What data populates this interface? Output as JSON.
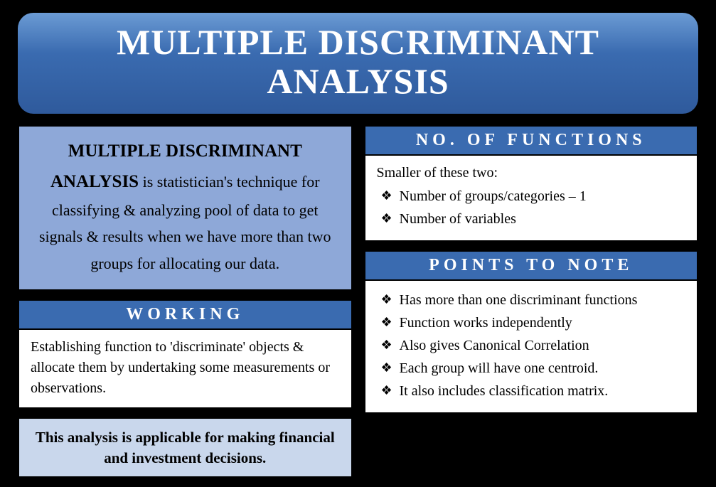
{
  "title": "MULTIPLE DISCRIMINANT ANALYSIS",
  "definition": {
    "heading": "MULTIPLE DISCRIMINANT ANALYSIS",
    "body": " is statistician's technique for classifying & analyzing pool of data to get signals & results when we have more than two groups for allocating our data."
  },
  "working": {
    "header": "WORKING",
    "body": "Establishing function to 'discriminate' objects & allocate them by undertaking some measurements or observations."
  },
  "note": "This analysis is applicable for making financial and investment decisions.",
  "functions": {
    "header": "NO. OF FUNCTIONS",
    "intro": "Smaller of these two:",
    "items": [
      "Number of groups/categories – 1",
      "Number of variables"
    ]
  },
  "points": {
    "header": "POINTS TO NOTE",
    "items": [
      "Has more than one discriminant functions",
      "Function works independently",
      "Also gives Canonical Correlation",
      "Each group will have one centroid.",
      "It also includes classification matrix."
    ]
  },
  "colors": {
    "title_gradient_top": "#6b9bd4",
    "title_gradient_bottom": "#2f5a9c",
    "header_bg": "#3a6bb0",
    "def_bg": "#8ea8d8",
    "note_bg": "#c9d7ec",
    "body_bg": "#ffffff",
    "page_bg": "#000000",
    "text_white": "#ffffff",
    "text_black": "#000000"
  }
}
